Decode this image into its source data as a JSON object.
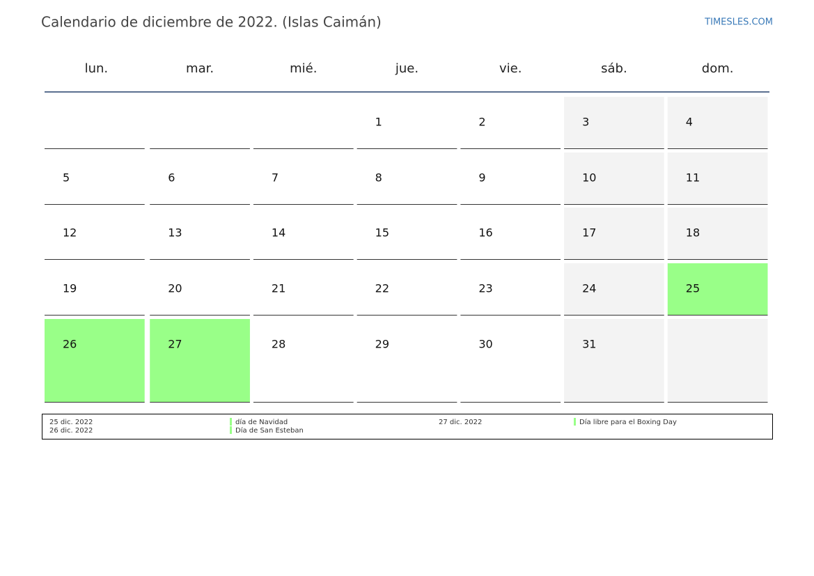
{
  "header": {
    "title": "Calendario de diciembre de 2022. (Islas Caimán)",
    "brand": "TIMESLES.COM"
  },
  "weekdays": [
    "lun.",
    "mar.",
    "mié.",
    "jue.",
    "vie.",
    "sáb.",
    "dom."
  ],
  "weeks": [
    [
      null,
      null,
      null,
      1,
      2,
      3,
      4
    ],
    [
      5,
      6,
      7,
      8,
      9,
      10,
      11
    ],
    [
      12,
      13,
      14,
      15,
      16,
      17,
      18
    ],
    [
      19,
      20,
      21,
      22,
      23,
      24,
      {
        "day": 25,
        "holiday": true
      }
    ],
    [
      {
        "day": 26,
        "holiday": true
      },
      {
        "day": 27,
        "holiday": true
      },
      28,
      29,
      30,
      31,
      null
    ]
  ],
  "weekend_color": "#f3f3f3",
  "holiday_color": "#99ff88",
  "holidays": [
    {
      "date": "25 dic. 2022",
      "name": "día de Navidad"
    },
    {
      "date": "26 dic. 2022",
      "name": "Día de San Esteban"
    },
    {
      "date": "27 dic. 2022",
      "name": "Día libre para el Boxing Day"
    }
  ]
}
